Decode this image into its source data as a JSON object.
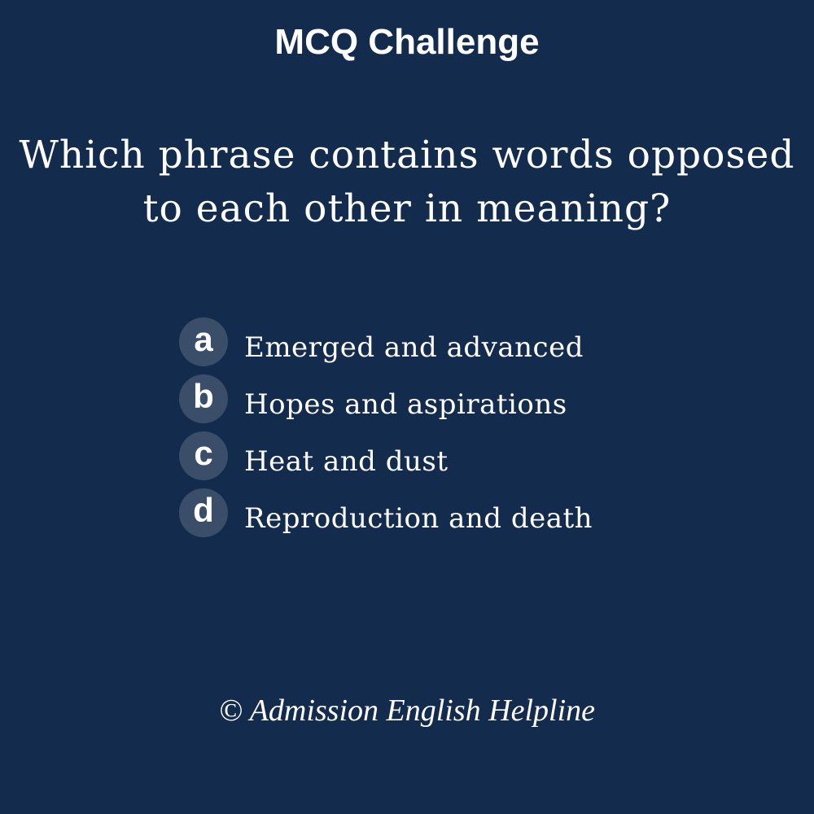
{
  "title": "MCQ Challenge",
  "question": {
    "line1": "Which phrase contains words opposed",
    "line2": "to each other in meaning?"
  },
  "options": [
    {
      "letter": "a",
      "text": "Emerged and advanced"
    },
    {
      "letter": "b",
      "text": "Hopes and aspirations"
    },
    {
      "letter": "c",
      "text": "Heat and dust"
    },
    {
      "letter": "d",
      "text": "Reproduction and death"
    }
  ],
  "footer": "© Admission English Helpline",
  "colors": {
    "background": "#132b4d",
    "badge": "#3a4e69",
    "text": "#ffffff"
  }
}
